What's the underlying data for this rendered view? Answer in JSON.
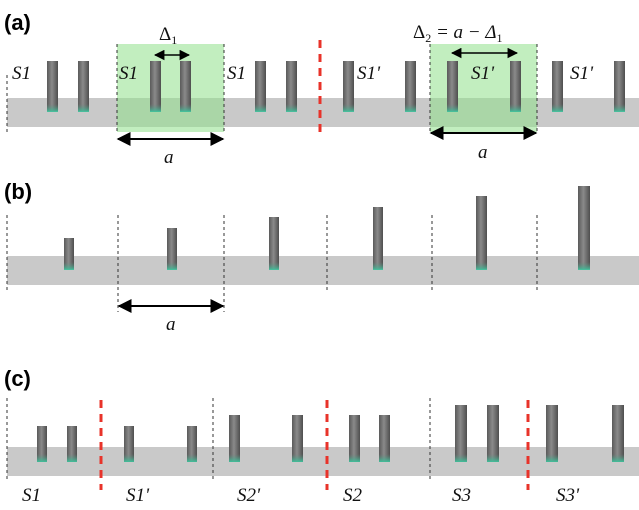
{
  "panels": {
    "a": {
      "label": "(a)",
      "delta1_label": "Δ",
      "delta1_sub": "1",
      "delta2_label": "Δ",
      "delta2_sub": "2",
      "delta2_rhs": " = a − Δ",
      "delta2_rhs_sub": "1",
      "a_label": "a",
      "site_labels": [
        "S1",
        "S1",
        "S1",
        "S1'",
        "S1'",
        "S1'"
      ]
    },
    "b": {
      "label": "(b)",
      "a_label": "a"
    },
    "c": {
      "label": "(c)",
      "site_labels": [
        "S1",
        "S1'",
        "S2'",
        "S2",
        "S3",
        "S3'"
      ]
    }
  },
  "colors": {
    "highlight": "#8fe08a",
    "domain_wall": "#e8332a",
    "substrate": "#c9c9c9",
    "pillar": "#6f6f6f",
    "pillar_base": "#4fa88a"
  }
}
